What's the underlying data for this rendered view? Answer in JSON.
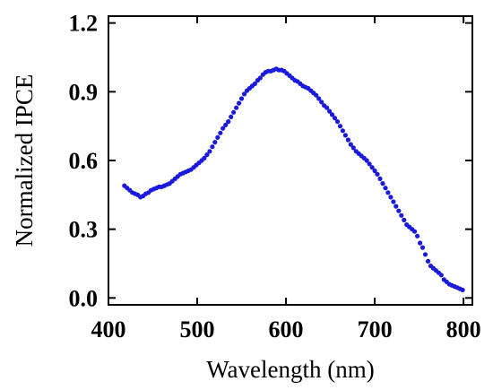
{
  "chart_data": {
    "type": "scatter",
    "title": "",
    "xlabel": "Wavelength (nm)",
    "ylabel": "Normalized IPCE",
    "xlim": [
      400,
      810
    ],
    "ylim": [
      -0.03,
      1.23
    ],
    "xticks": [
      400,
      500,
      600,
      700,
      800
    ],
    "yticks": [
      0.0,
      0.3,
      0.6,
      0.9,
      1.2
    ],
    "xtick_labels": [
      "400",
      "500",
      "600",
      "700",
      "800"
    ],
    "ytick_labels": [
      "0.0",
      "0.3",
      "0.6",
      "0.9",
      "1.2"
    ],
    "grid": false,
    "legend": "none",
    "marker_color": "#1a1adf",
    "series": [
      {
        "x": [
          418,
          421,
          424,
          427,
          430,
          433,
          436,
          439,
          442,
          445,
          448,
          451,
          454,
          457,
          460,
          463,
          466,
          469,
          472,
          475,
          478,
          481,
          484,
          487,
          490,
          493,
          496,
          499,
          502,
          505,
          508,
          511,
          514,
          517,
          520,
          523,
          526,
          529,
          532,
          535,
          538,
          541,
          544,
          547,
          550,
          553,
          556,
          559,
          562,
          565,
          568,
          571,
          574,
          577,
          580,
          583,
          586,
          589,
          592,
          595,
          598,
          601,
          604,
          607,
          610,
          613,
          616,
          619,
          622,
          625,
          628,
          631,
          634,
          637,
          640,
          643,
          646,
          649,
          652,
          655,
          658,
          661,
          664,
          667,
          670,
          673,
          676,
          679,
          682,
          685,
          688,
          691,
          694,
          697,
          700,
          703,
          706,
          709,
          712,
          715,
          718,
          721,
          724,
          727,
          730,
          733,
          736,
          739,
          742,
          745,
          748,
          751,
          754,
          757,
          760,
          763,
          766,
          769,
          772,
          775,
          778,
          781,
          784,
          787,
          790,
          793,
          796,
          799
        ],
        "y": [
          0.49,
          0.48,
          0.47,
          0.46,
          0.455,
          0.45,
          0.44,
          0.445,
          0.455,
          0.46,
          0.47,
          0.475,
          0.48,
          0.485,
          0.485,
          0.49,
          0.495,
          0.5,
          0.51,
          0.52,
          0.53,
          0.54,
          0.545,
          0.55,
          0.555,
          0.56,
          0.57,
          0.58,
          0.59,
          0.6,
          0.61,
          0.625,
          0.64,
          0.66,
          0.68,
          0.7,
          0.72,
          0.74,
          0.755,
          0.77,
          0.79,
          0.81,
          0.83,
          0.85,
          0.87,
          0.89,
          0.905,
          0.915,
          0.925,
          0.935,
          0.95,
          0.96,
          0.975,
          0.985,
          0.99,
          0.99,
          0.995,
          1.0,
          0.995,
          0.995,
          0.99,
          0.98,
          0.97,
          0.96,
          0.95,
          0.945,
          0.935,
          0.925,
          0.92,
          0.915,
          0.905,
          0.895,
          0.885,
          0.87,
          0.855,
          0.84,
          0.83,
          0.815,
          0.8,
          0.785,
          0.77,
          0.75,
          0.73,
          0.71,
          0.69,
          0.67,
          0.655,
          0.64,
          0.63,
          0.62,
          0.61,
          0.6,
          0.585,
          0.57,
          0.555,
          0.54,
          0.52,
          0.5,
          0.48,
          0.46,
          0.44,
          0.42,
          0.4,
          0.38,
          0.36,
          0.34,
          0.32,
          0.31,
          0.3,
          0.29,
          0.27,
          0.24,
          0.22,
          0.19,
          0.16,
          0.14,
          0.13,
          0.12,
          0.11,
          0.1,
          0.08,
          0.07,
          0.06,
          0.055,
          0.05,
          0.045,
          0.04,
          0.035
        ]
      }
    ]
  }
}
